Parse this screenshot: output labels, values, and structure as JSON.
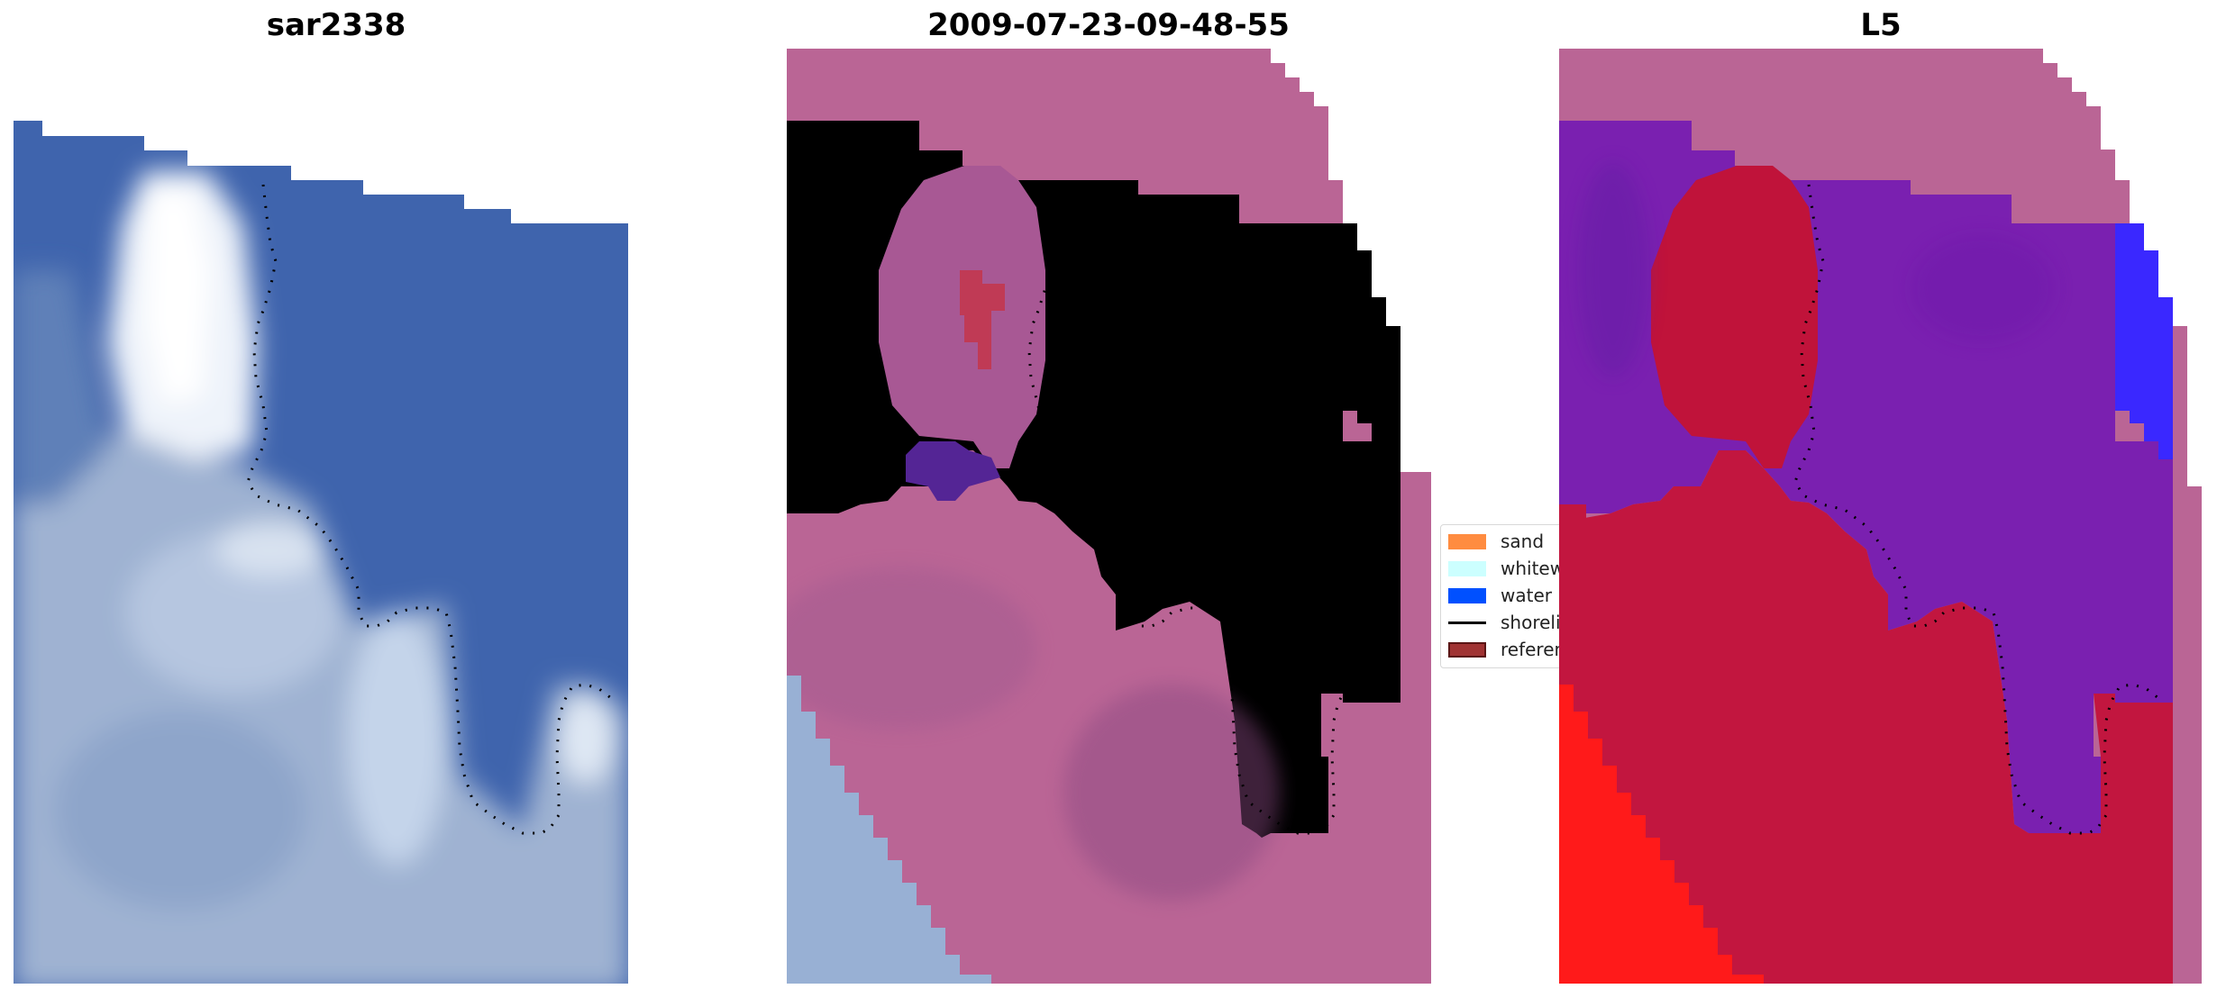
{
  "panels": [
    {
      "title": "sar2338",
      "kind": "rgb"
    },
    {
      "title": "2009-07-23-09-48-55",
      "kind": "classified"
    },
    {
      "title": "L5",
      "kind": "probability"
    }
  ],
  "legend": {
    "items": [
      {
        "label": "sand",
        "color": "#ff8c40"
      },
      {
        "label": "whitewater",
        "color": "#ccffff"
      },
      {
        "label": "water",
        "color": "#0050ff"
      },
      {
        "label": "shoreline",
        "color": "#000000"
      },
      {
        "label": "reference",
        "color": "#a03232"
      }
    ]
  },
  "colors": {
    "water_rgb": "#3f66b0",
    "land_rgb": "#9bb0cf",
    "cloud": "#e8eef6",
    "no_data": "#ba6595",
    "class_water_dark": "#542595",
    "class_land": "#934c86",
    "class_water_blue": "#0050ff",
    "prob_water": "#7a20b0",
    "prob_land": "#c0133a",
    "prob_land_bright": "#ff1a1a",
    "shoreline": "#000000"
  }
}
